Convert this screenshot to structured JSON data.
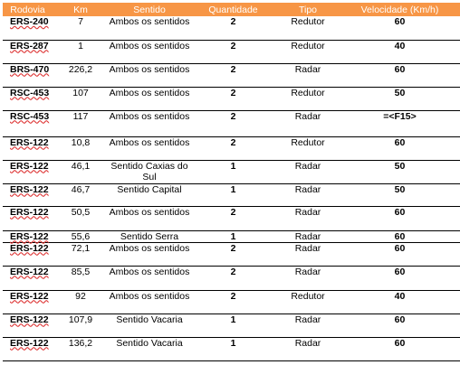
{
  "headers": [
    "Rodovia",
    "Km",
    "Sentido",
    "Quantidade",
    "Tipo",
    "Velocidade (Km/h)"
  ],
  "rows": [
    {
      "rodovia": "ERS-240",
      "km": "7",
      "sentido": "Ambos os sentidos",
      "quantidade": "2",
      "tipo": "Redutor",
      "velocidade": "60"
    },
    {
      "rodovia": "ERS-287",
      "km": "1",
      "sentido": "Ambos os sentidos",
      "quantidade": "2",
      "tipo": "Redutor",
      "velocidade": "40"
    },
    {
      "rodovia": "BRS-470",
      "km": "226,2",
      "sentido": "Ambos os sentidos",
      "quantidade": "2",
      "tipo": "Radar",
      "velocidade": "60"
    },
    {
      "rodovia": "RSC-453",
      "km": "107",
      "sentido": "Ambos os sentidos",
      "quantidade": "2",
      "tipo": "Redutor",
      "velocidade": "50"
    },
    {
      "rodovia": "RSC-453",
      "km": "117",
      "sentido": "Ambos os sentidos",
      "quantidade": "2",
      "tipo": "Radar",
      "velocidade": "=<F15>"
    },
    {
      "rodovia": "ERS-122",
      "km": "10,8",
      "sentido": "Ambos os sentidos",
      "quantidade": "2",
      "tipo": "Redutor",
      "velocidade": "60"
    },
    {
      "rodovia": "ERS-122",
      "km": "46,1",
      "sentido": "Sentido Caxias do Sul",
      "quantidade": "1",
      "tipo": "Radar",
      "velocidade": "50"
    },
    {
      "rodovia": "ERS-122",
      "km": "46,7",
      "sentido": "Sentido Capital",
      "quantidade": "1",
      "tipo": "Radar",
      "velocidade": "50"
    },
    {
      "rodovia": "ERS-122",
      "km": "50,5",
      "sentido": "Ambos os sentidos",
      "quantidade": "2",
      "tipo": "Radar",
      "velocidade": "60"
    },
    {
      "rodovia": "ERS-122",
      "km": "55,6",
      "sentido": "Sentido Serra",
      "quantidade": "1",
      "tipo": "Radar",
      "velocidade": "60"
    },
    {
      "rodovia": "ERS-122",
      "km": "72,1",
      "sentido": "Ambos os sentidos",
      "quantidade": "2",
      "tipo": "Radar",
      "velocidade": "60"
    },
    {
      "rodovia": "ERS-122",
      "km": "85,5",
      "sentido": "Ambos os sentidos",
      "quantidade": "2",
      "tipo": "Radar",
      "velocidade": "60"
    },
    {
      "rodovia": "ERS-122",
      "km": "92",
      "sentido": "Ambos os sentidos",
      "quantidade": "2",
      "tipo": "Redutor",
      "velocidade": "40"
    },
    {
      "rodovia": "ERS-122",
      "km": "107,9",
      "sentido": "Sentido Vacaria",
      "quantidade": "1",
      "tipo": "Radar",
      "velocidade": "60"
    },
    {
      "rodovia": "ERS-122",
      "km": "136,2",
      "sentido": "Sentido Vacaria",
      "quantidade": "1",
      "tipo": "Radar",
      "velocidade": "60"
    }
  ],
  "colors": {
    "header_bg": "#f79646",
    "header_text": "#ffffff",
    "spell_underline": "#dd3333"
  }
}
